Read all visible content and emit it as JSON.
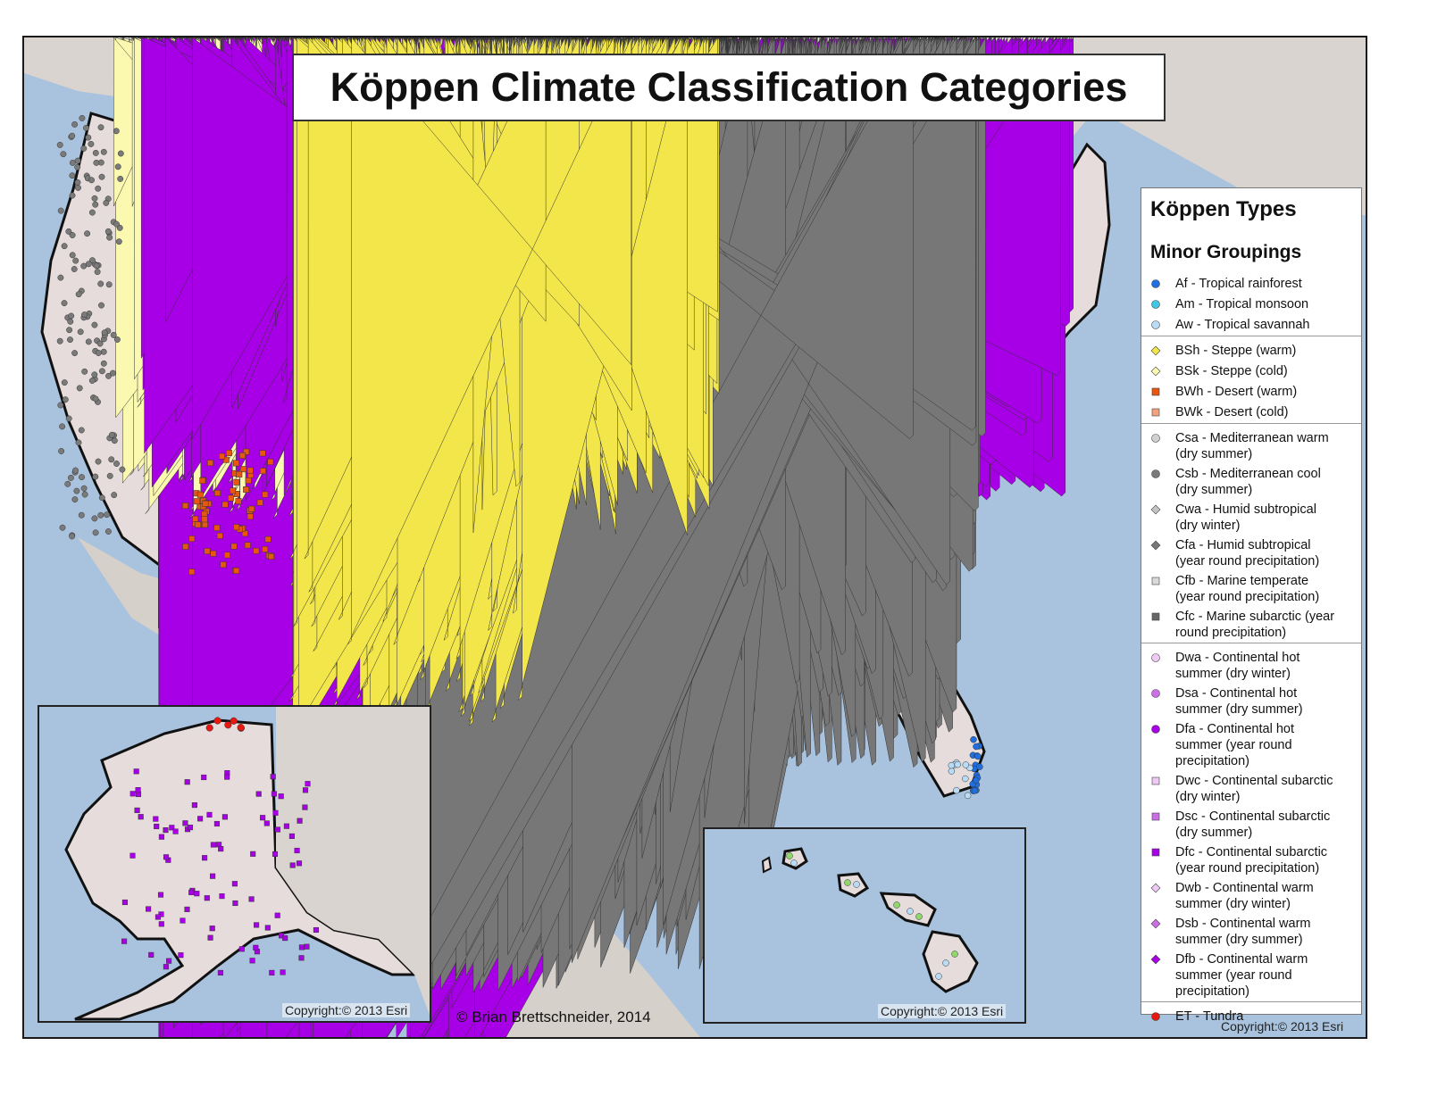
{
  "title": "Köppen Climate Classification Categories",
  "author_credit": "© Brian Brettschneider, 2014",
  "copyright_esri": "Copyright:© 2013 Esri",
  "legend": {
    "heading": "Köppen Types",
    "subheading": "Minor Groupings",
    "groups": [
      [
        {
          "code": "Af",
          "lines": [
            "Af - Tropical rainforest"
          ],
          "color": "#1f6fe0",
          "shape": "circle"
        },
        {
          "code": "Am",
          "lines": [
            "Am - Tropical monsoon"
          ],
          "color": "#3fc7e6",
          "shape": "circle"
        },
        {
          "code": "Aw",
          "lines": [
            "Aw - Tropical savannah"
          ],
          "color": "#b8dcf5",
          "shape": "circle"
        }
      ],
      [
        {
          "code": "BSh",
          "lines": [
            "BSh - Steppe (warm)"
          ],
          "color": "#f2e64a",
          "shape": "diamond"
        },
        {
          "code": "BSk",
          "lines": [
            "BSk - Steppe (cold)"
          ],
          "color": "#fbf8b0",
          "shape": "diamond"
        },
        {
          "code": "BWh",
          "lines": [
            "BWh - Desert (warm)"
          ],
          "color": "#e8560f",
          "shape": "square"
        },
        {
          "code": "BWk",
          "lines": [
            "BWk - Desert (cold)"
          ],
          "color": "#f4a27a",
          "shape": "square"
        }
      ],
      [
        {
          "code": "Csa",
          "lines": [
            "Csa - Mediterranean warm",
            "(dry summer)"
          ],
          "color": "#d0d0d0",
          "shape": "circle"
        },
        {
          "code": "Csb",
          "lines": [
            "Csb -  Mediterranean cool",
            "(dry summer)"
          ],
          "color": "#7a7a7a",
          "shape": "circle"
        },
        {
          "code": "Cwa",
          "lines": [
            "Cwa - Humid subtropical",
            "(dry winter)"
          ],
          "color": "#c4c4c4",
          "shape": "diamond"
        },
        {
          "code": "Cfa",
          "lines": [
            "Cfa - Humid subtropical",
            "(year round precipitation)"
          ],
          "color": "#777777",
          "shape": "diamond"
        },
        {
          "code": "Cfb",
          "lines": [
            "Cfb - Marine temperate",
            "(year round precipitation)"
          ],
          "color": "#dadada",
          "shape": "square"
        },
        {
          "code": "Cfc",
          "lines": [
            "Cfc - Marine subarctic (year",
            "round precipitation)"
          ],
          "color": "#666666",
          "shape": "square"
        }
      ],
      [
        {
          "code": "Dwa",
          "lines": [
            "Dwa - Continental hot",
            "summer (dry winter)"
          ],
          "color": "#efc8f6",
          "shape": "circle"
        },
        {
          "code": "Dsa",
          "lines": [
            "Dsa - Continental hot",
            "summer (dry summer)"
          ],
          "color": "#cc6ee8",
          "shape": "circle"
        },
        {
          "code": "Dfa",
          "lines": [
            "Dfa - Continental hot",
            "summer (year round",
            "precipitation)"
          ],
          "color": "#a800e6",
          "shape": "circle"
        },
        {
          "code": "Dwc",
          "lines": [
            "Dwc - Continental subarctic",
            "(dry winter)"
          ],
          "color": "#efc8f6",
          "shape": "square"
        },
        {
          "code": "Dsc",
          "lines": [
            "Dsc - Continental subarctic",
            "(dry summer)"
          ],
          "color": "#cc6ee8",
          "shape": "square"
        },
        {
          "code": "Dfc",
          "lines": [
            "Dfc - Continental subarctic",
            "(year round precipitation)"
          ],
          "color": "#a800e6",
          "shape": "square"
        },
        {
          "code": "Dwb",
          "lines": [
            "Dwb - Continental warm",
            "summer (dry winter)"
          ],
          "color": "#efc8f6",
          "shape": "diamond"
        },
        {
          "code": "Dsb",
          "lines": [
            "Dsb - Continental warm",
            "summer (dry summer)"
          ],
          "color": "#cc6ee8",
          "shape": "diamond"
        },
        {
          "code": "Dfb",
          "lines": [
            "Dfb - Continental warm",
            "summer (year round",
            "precipitation)"
          ],
          "color": "#a800e6",
          "shape": "diamond"
        }
      ],
      [
        {
          "code": "ET",
          "lines": [
            "ET - Tundra"
          ],
          "color": "#e8170f",
          "shape": "circle"
        }
      ]
    ]
  },
  "colors": {
    "water": "#a9c3de",
    "land_other": "#d9d4cf",
    "land_us": "#e7dcdc"
  }
}
